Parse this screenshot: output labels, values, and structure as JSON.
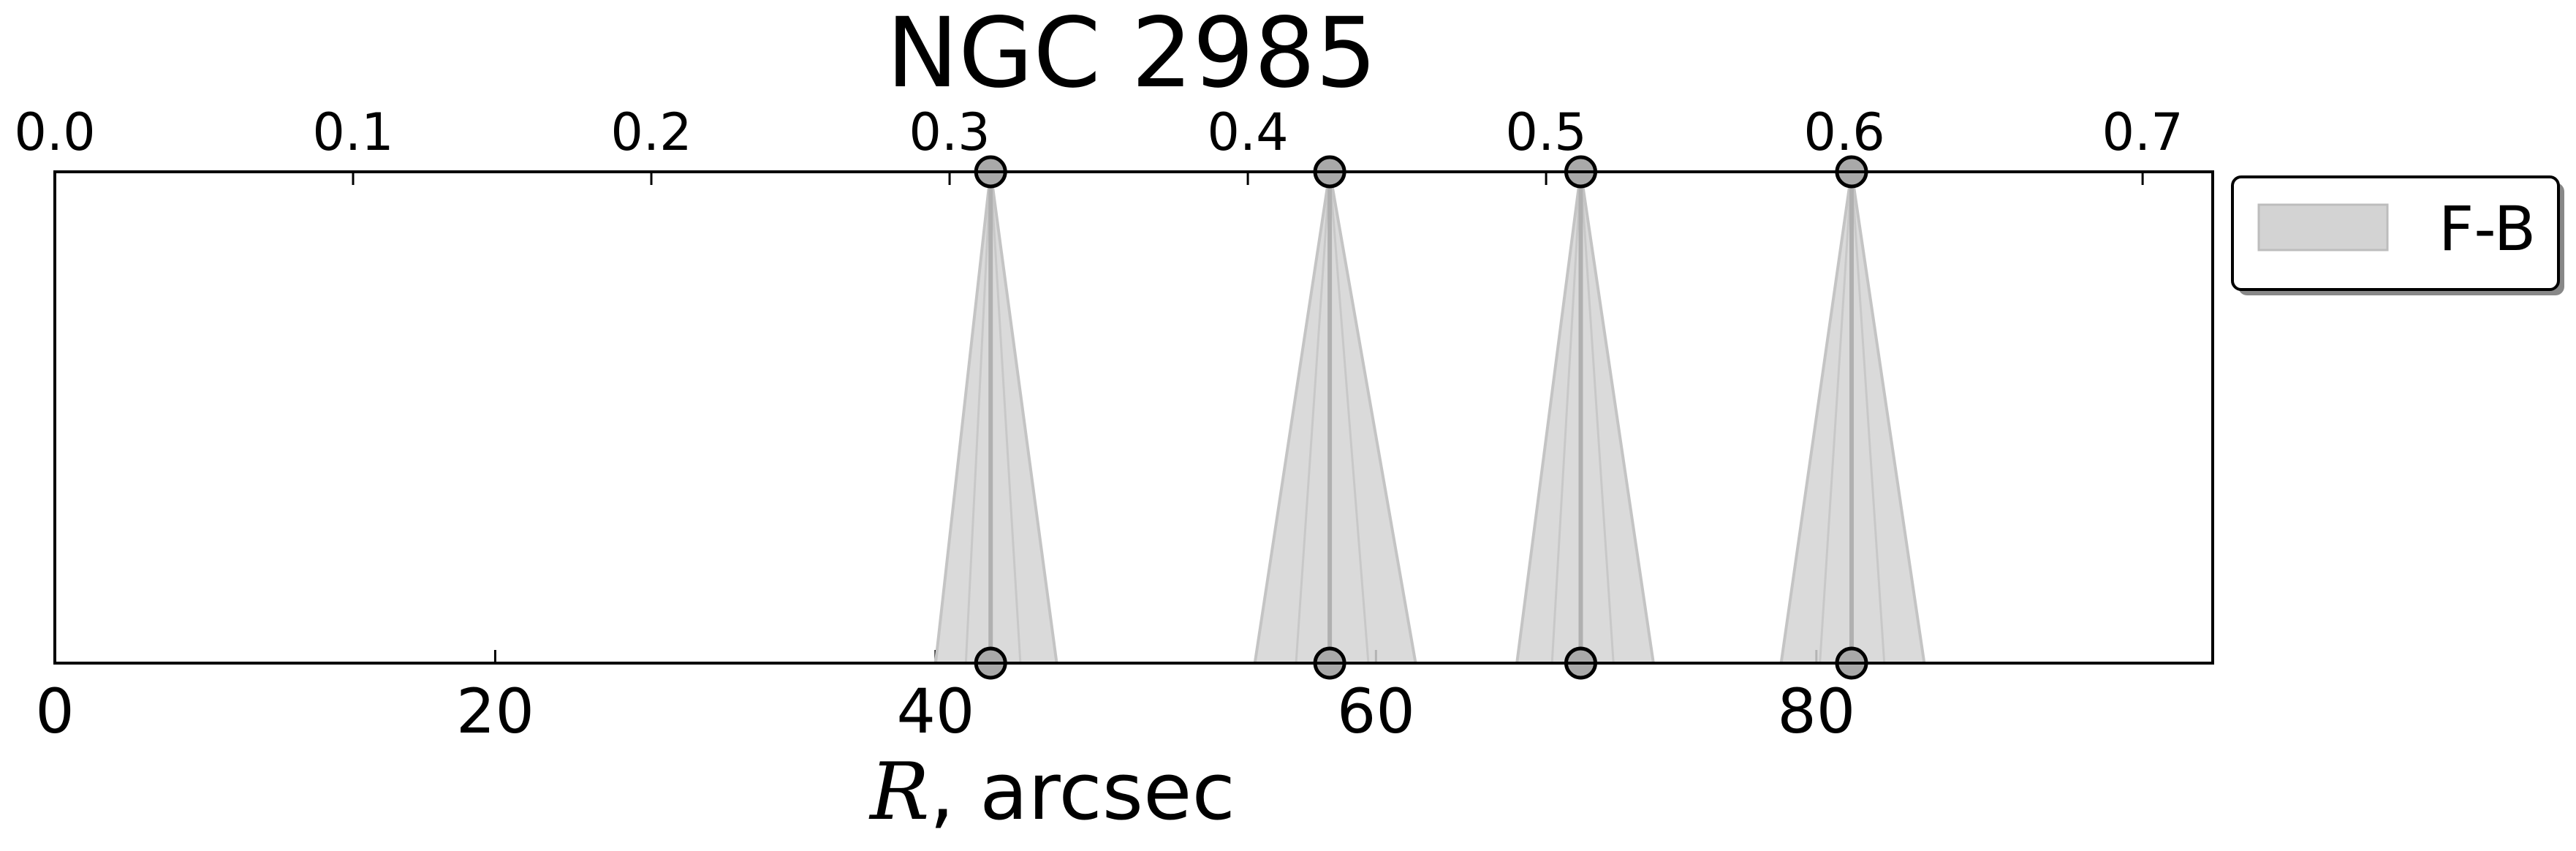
{
  "chart_data": {
    "type": "area",
    "title": "NGC 2985",
    "xlabel_symbol": "R",
    "xlabel_rest": ", arcsec",
    "xlim": [
      0,
      98
    ],
    "bottom_ticks": [
      0,
      20,
      40,
      60,
      80
    ],
    "bottom_tick_labels": [
      "0",
      "20",
      "40",
      "60",
      "80"
    ],
    "top_axis": {
      "xlim": [
        0,
        0.7235
      ],
      "ticks": [
        0.0,
        0.1,
        0.2,
        0.3,
        0.4,
        0.5,
        0.6,
        0.7
      ],
      "tick_labels": [
        "0.0",
        "0.1",
        "0.2",
        "0.3",
        "0.4",
        "0.5",
        "0.6",
        "0.7"
      ]
    },
    "grid": false,
    "legend": {
      "placement": "outside-right-top",
      "entries": [
        {
          "label": "F-B",
          "color": "#d3d3d3"
        }
      ]
    },
    "series": [
      {
        "name": "F-B",
        "color": "#d3d3d3",
        "wedges": [
          {
            "x": 42.5,
            "x_lo": 40.0,
            "x_hi": 45.5
          },
          {
            "x": 57.9,
            "x_lo": 54.5,
            "x_hi": 61.8
          },
          {
            "x": 69.3,
            "x_lo": 66.4,
            "x_hi": 72.6
          },
          {
            "x": 81.6,
            "x_lo": 78.4,
            "x_hi": 84.9
          }
        ]
      }
    ]
  }
}
